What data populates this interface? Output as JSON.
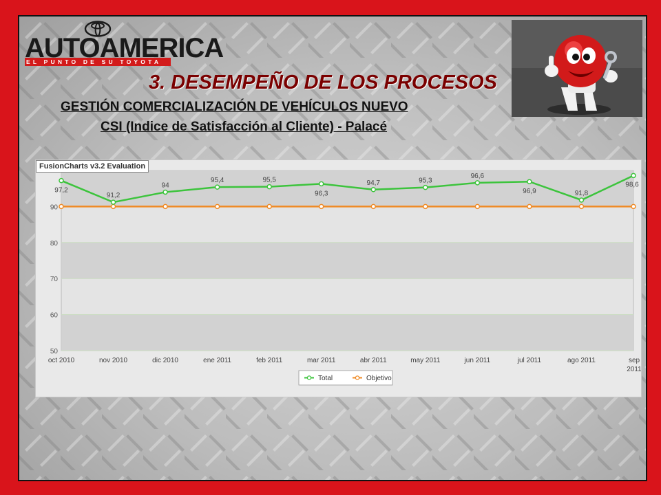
{
  "logo": {
    "wordmark": "AUTOAMERICA",
    "tagline": "EL PUNTO DE SU TOYOTA"
  },
  "header": {
    "title": "3. DESEMPEÑO DE LOS PROCESOS",
    "subtitle1": "GESTIÓN COMERCIALIZACIÓN DE VEHÍCULOS NUEVO",
    "subtitle2": "CSI (Indice de Satisfacción al Cliente) - Palacé"
  },
  "watermark": "FusionCharts v3.2 Evaluation",
  "chart_data": {
    "type": "line",
    "categories": [
      "oct 2010",
      "nov 2010",
      "dic 2010",
      "ene 2011",
      "feb 2011",
      "mar 2011",
      "abr 2011",
      "may 2011",
      "jun 2011",
      "jul 2011",
      "ago 2011",
      "sep 2011"
    ],
    "series": [
      {
        "name": "Total",
        "values": [
          97.2,
          91.2,
          94,
          95.4,
          95.5,
          96.3,
          94.7,
          95.3,
          96.6,
          96.9,
          91.8,
          98.6
        ],
        "color": "#3cc43c"
      },
      {
        "name": "Objetivo",
        "values": [
          90,
          90,
          90,
          90,
          90,
          90,
          90,
          90,
          90,
          90,
          90,
          90
        ],
        "color": "#f08a24"
      }
    ],
    "yticks": [
      "50",
      "60",
      "70",
      "80",
      "90"
    ],
    "ylim": [
      50,
      100
    ],
    "legend_position": "bottom",
    "grid": true
  }
}
